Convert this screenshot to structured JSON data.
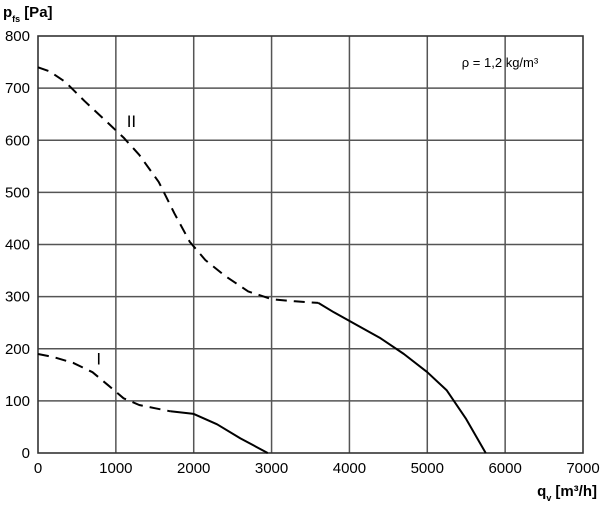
{
  "chart_data": {
    "type": "line",
    "y_title_main": "p",
    "y_title_sub": "fs",
    "y_title_unit": "[Pa]",
    "x_title_main": "q",
    "x_title_sub": "v",
    "x_title_unit": "[m³/h]",
    "xlim": [
      0,
      7000
    ],
    "ylim": [
      0,
      800
    ],
    "x_ticks": [
      "0",
      "1000",
      "2000",
      "3000",
      "4000",
      "5000",
      "6000",
      "7000"
    ],
    "y_ticks": [
      "0",
      "100",
      "200",
      "300",
      "400",
      "500",
      "600",
      "700",
      "800"
    ],
    "grid": true,
    "annotation": "ρ = 1,2 kg/m³",
    "series": [
      {
        "label": "II",
        "label_at": [
          1200,
          625
        ],
        "dashed": {
          "x": [
            0,
            150,
            350,
            600,
            850,
            1100,
            1300,
            1550,
            1750,
            1950,
            2150,
            2400,
            2700,
            3000,
            3300,
            3600
          ],
          "y": [
            740,
            732,
            712,
            675,
            640,
            605,
            572,
            520,
            460,
            405,
            370,
            340,
            310,
            295,
            291,
            288
          ]
        },
        "solid": {
          "x": [
            3600,
            3800,
            4100,
            4400,
            4700,
            5000,
            5250,
            5500,
            5750
          ],
          "y": [
            288,
            270,
            245,
            220,
            190,
            155,
            120,
            65,
            0
          ]
        }
      },
      {
        "label": "I",
        "label_at": [
          780,
          170
        ],
        "dashed": {
          "x": [
            0,
            200,
            450,
            700,
            900,
            1100,
            1300,
            1500,
            1700
          ],
          "y": [
            190,
            184,
            173,
            155,
            130,
            105,
            92,
            86,
            80
          ]
        },
        "solid": {
          "x": [
            1700,
            2000,
            2300,
            2600,
            2800,
            2950
          ],
          "y": [
            80,
            75,
            55,
            28,
            12,
            0
          ]
        }
      }
    ]
  }
}
